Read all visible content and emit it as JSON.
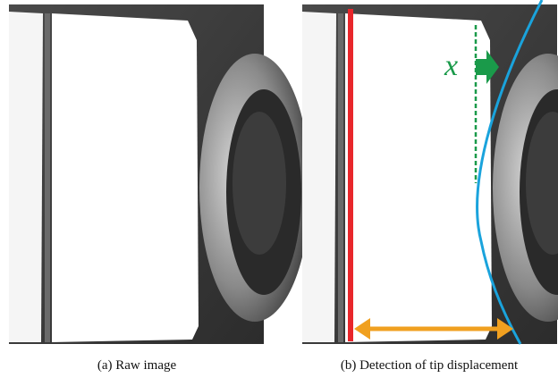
{
  "figure": {
    "panels": [
      {
        "caption": "(a) Raw image"
      },
      {
        "caption": "(b) Detection of tip displacement",
        "annotation": "x"
      }
    ]
  }
}
